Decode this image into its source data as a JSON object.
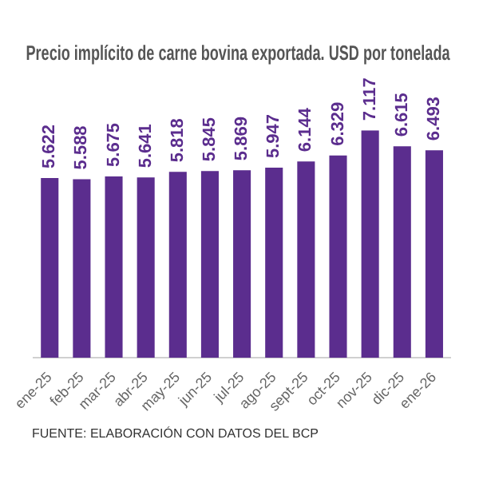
{
  "chart_data": {
    "type": "bar",
    "title": "Precio implícito de carne bovina exportada. USD por tonelada",
    "categories": [
      "ene-25",
      "feb-25",
      "mar-25",
      "abr-25",
      "may-25",
      "jun-25",
      "jul-25",
      "ago-25",
      "sept-25",
      "oct-25",
      "nov-25",
      "dic-25",
      "ene-26"
    ],
    "values": [
      5622,
      5588,
      5675,
      5641,
      5818,
      5845,
      5869,
      5947,
      6144,
      6329,
      7117,
      6615,
      6493
    ],
    "value_labels": [
      "5.622",
      "5.588",
      "5.675",
      "5.641",
      "5.818",
      "5.845",
      "5.869",
      "5.947",
      "6.144",
      "6.329",
      "7.117",
      "6.615",
      "6.493"
    ],
    "color": "#5b2d8e",
    "grid": false,
    "legend": false,
    "tick_labels": "x",
    "annotations": [
      "FUENTE: ELABORACIÓN CON DATOS DEL BCP"
    ]
  }
}
